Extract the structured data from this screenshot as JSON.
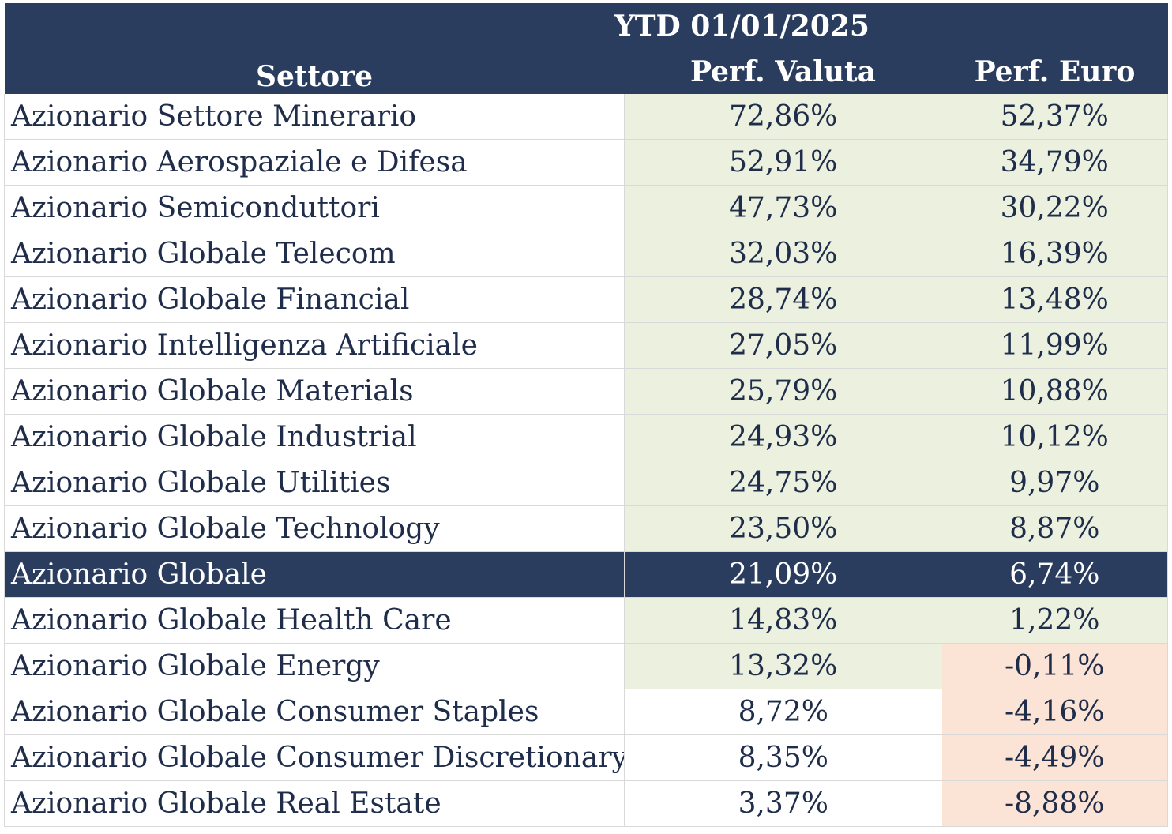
{
  "header": {
    "ytd_label": "YTD 01/01/2025",
    "settore_label": "Settore",
    "perf_valuta_label": "Perf. Valuta",
    "perf_euro_label": "Perf. Euro"
  },
  "colors": {
    "header_bg": "#2a3d5e",
    "positive_bg": "#ebf0df",
    "negative_bg": "#fbe4d5",
    "text": "#1f2d4a"
  },
  "rows": [
    {
      "settore": "Azionario Settore Minerario",
      "perf_valuta": "72,86%",
      "perf_euro": "52,37%"
    },
    {
      "settore": "Azionario Aerospaziale e Difesa",
      "perf_valuta": "52,91%",
      "perf_euro": "34,79%"
    },
    {
      "settore": "Azionario Semiconduttori",
      "perf_valuta": "47,73%",
      "perf_euro": "30,22%"
    },
    {
      "settore": "Azionario Globale Telecom",
      "perf_valuta": "32,03%",
      "perf_euro": "16,39%"
    },
    {
      "settore": "Azionario Globale Financial",
      "perf_valuta": "28,74%",
      "perf_euro": "13,48%"
    },
    {
      "settore": "Azionario Intelligenza Artificiale",
      "perf_valuta": "27,05%",
      "perf_euro": "11,99%"
    },
    {
      "settore": "Azionario Globale Materials",
      "perf_valuta": "25,79%",
      "perf_euro": "10,88%"
    },
    {
      "settore": "Azionario Globale Industrial",
      "perf_valuta": "24,93%",
      "perf_euro": "10,12%"
    },
    {
      "settore": "Azionario Globale Utilities",
      "perf_valuta": "24,75%",
      "perf_euro": "9,97%"
    },
    {
      "settore": "Azionario Globale Technology",
      "perf_valuta": "23,50%",
      "perf_euro": "8,87%"
    },
    {
      "settore": "Azionario Globale",
      "perf_valuta": "21,09%",
      "perf_euro": "6,74%"
    },
    {
      "settore": "Azionario Globale Health Care",
      "perf_valuta": "14,83%",
      "perf_euro": "1,22%"
    },
    {
      "settore": "Azionario Globale Energy",
      "perf_valuta": "13,32%",
      "perf_euro": "-0,11%"
    },
    {
      "settore": "Azionario Globale Consumer Staples",
      "perf_valuta": "8,72%",
      "perf_euro": "-4,16%"
    },
    {
      "settore": "Azionario Globale Consumer Discretionary",
      "perf_valuta": "8,35%",
      "perf_euro": "-4,49%"
    },
    {
      "settore": "Azionario Globale Real Estate",
      "perf_valuta": "3,37%",
      "perf_euro": "-8,88%"
    }
  ]
}
